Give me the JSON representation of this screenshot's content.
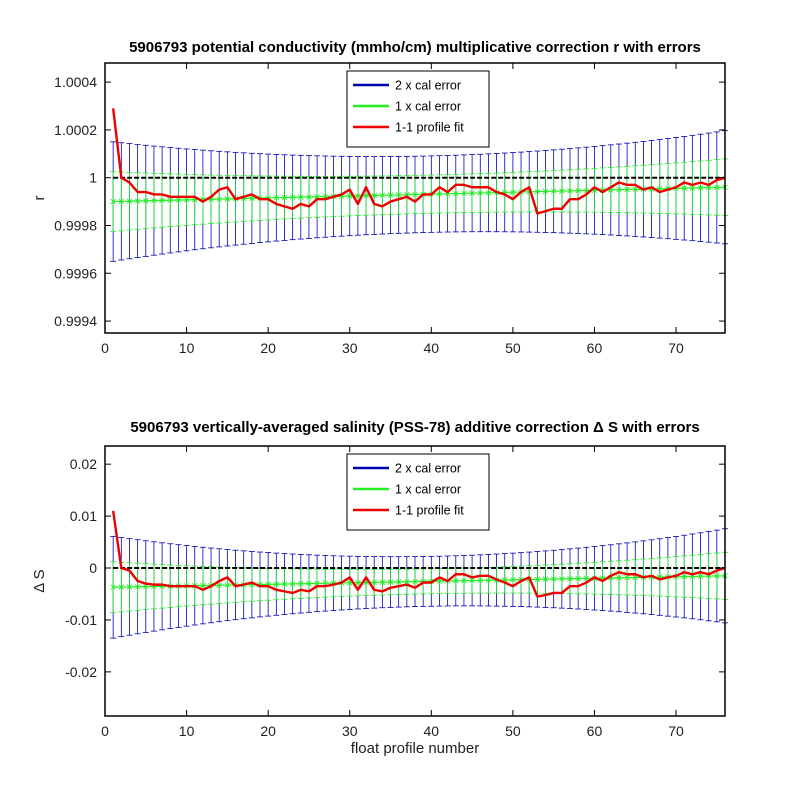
{
  "colors": {
    "error_2x": "#0000b3",
    "error_1x": "#22ee22",
    "fit": "#ee0000",
    "reference": "#000000"
  },
  "chart_data": [
    {
      "type": "line",
      "title": "5906793 potential conductivity (mmho/cm) multiplicative correction r with errors",
      "xlabel": "",
      "ylabel": "r",
      "xlim": [
        0,
        76
      ],
      "ylim": [
        0.99935,
        1.00048
      ],
      "xticks": [
        0,
        10,
        20,
        30,
        40,
        50,
        60,
        70
      ],
      "yticks": [
        0.9994,
        0.9996,
        0.9998,
        1,
        1.0002,
        1.0004
      ],
      "yticklabels": [
        "0.9994",
        "0.9996",
        "0.9998",
        "1",
        "1.0002",
        "1.0004"
      ],
      "reference_line": 1,
      "legend": {
        "position": "top-center",
        "entries": [
          "2 x cal error",
          "1 x cal error",
          "1-1 profile fit"
        ]
      },
      "calibration": {
        "x_range": [
          1,
          76
        ],
        "center_start": 0.9999,
        "center_end": 0.99996,
        "error_1x_min": 8e-05,
        "error_1x_max": 0.000125,
        "error_2x_min": 0.00016,
        "error_2x_max": 0.00025,
        "min_at_x": 40
      },
      "series": [
        {
          "name": "1-1 profile fit",
          "x": [
            1,
            2,
            3,
            4,
            5,
            6,
            7,
            8,
            9,
            10,
            11,
            12,
            13,
            14,
            15,
            16,
            17,
            18,
            19,
            20,
            21,
            22,
            23,
            24,
            25,
            26,
            27,
            28,
            29,
            30,
            31,
            32,
            33,
            34,
            35,
            36,
            37,
            38,
            39,
            40,
            41,
            42,
            43,
            44,
            45,
            46,
            47,
            48,
            49,
            50,
            51,
            52,
            53,
            54,
            55,
            56,
            57,
            58,
            59,
            60,
            61,
            62,
            63,
            64,
            65,
            66,
            67,
            68,
            69,
            70,
            71,
            72,
            73,
            74,
            75,
            76
          ],
          "y": [
            1.00029,
            1.0,
            0.99998,
            0.99994,
            0.99994,
            0.99993,
            0.99993,
            0.99992,
            0.99992,
            0.99992,
            0.99992,
            0.9999,
            0.99992,
            0.99995,
            0.99996,
            0.99991,
            0.99992,
            0.99993,
            0.99991,
            0.99991,
            0.99989,
            0.99988,
            0.99987,
            0.99989,
            0.99988,
            0.99991,
            0.99991,
            0.99992,
            0.99993,
            0.99995,
            0.99989,
            0.99996,
            0.99989,
            0.99988,
            0.9999,
            0.99991,
            0.99992,
            0.9999,
            0.99993,
            0.99993,
            0.99996,
            0.99994,
            0.99997,
            0.99997,
            0.99996,
            0.99996,
            0.99996,
            0.99994,
            0.99993,
            0.99991,
            0.99994,
            0.99996,
            0.99985,
            0.99986,
            0.99987,
            0.99987,
            0.99991,
            0.99991,
            0.99993,
            0.99996,
            0.99994,
            0.99996,
            0.99998,
            0.99997,
            0.99997,
            0.99995,
            0.99996,
            0.99994,
            0.99995,
            0.99996,
            0.99998,
            0.99997,
            0.99998,
            0.99997,
            0.99999,
            1.0
          ]
        }
      ]
    },
    {
      "type": "line",
      "title": "5906793 vertically-averaged salinity (PSS-78) additive correction Δ S with errors",
      "xlabel": "float profile number",
      "ylabel": "Δ S",
      "xlim": [
        0,
        76
      ],
      "ylim": [
        -0.0285,
        0.0235
      ],
      "xticks": [
        0,
        10,
        20,
        30,
        40,
        50,
        60,
        70
      ],
      "yticks": [
        -0.02,
        -0.01,
        0,
        0.01,
        0.02
      ],
      "yticklabels": [
        "-0.02",
        "-0.01",
        "0",
        "0.01",
        "0.02"
      ],
      "reference_line": 0,
      "legend": {
        "position": "top-center",
        "entries": [
          "2 x cal error",
          "1 x cal error",
          "1-1 profile fit"
        ]
      },
      "calibration": {
        "x_range": [
          1,
          76
        ],
        "center_start": -0.0037,
        "center_end": -0.0015,
        "error_1x_min": 0.0024,
        "error_1x_max": 0.0049,
        "error_2x_min": 0.0048,
        "error_2x_max": 0.0098,
        "min_at_x": 40
      },
      "series": [
        {
          "name": "1-1 profile fit",
          "x": [
            1,
            2,
            3,
            4,
            5,
            6,
            7,
            8,
            9,
            10,
            11,
            12,
            13,
            14,
            15,
            16,
            17,
            18,
            19,
            20,
            21,
            22,
            23,
            24,
            25,
            26,
            27,
            28,
            29,
            30,
            31,
            32,
            33,
            34,
            35,
            36,
            37,
            38,
            39,
            40,
            41,
            42,
            43,
            44,
            45,
            46,
            47,
            48,
            49,
            50,
            51,
            52,
            53,
            54,
            55,
            56,
            57,
            58,
            59,
            60,
            61,
            62,
            63,
            64,
            65,
            66,
            67,
            68,
            69,
            70,
            71,
            72,
            73,
            74,
            75,
            76
          ],
          "y": [
            0.011,
            0.0,
            -0.0005,
            -0.0025,
            -0.003,
            -0.0032,
            -0.0032,
            -0.0035,
            -0.0035,
            -0.0035,
            -0.0035,
            -0.0042,
            -0.0035,
            -0.0025,
            -0.0018,
            -0.0035,
            -0.0032,
            -0.0028,
            -0.0035,
            -0.0035,
            -0.0042,
            -0.0045,
            -0.0048,
            -0.0042,
            -0.0045,
            -0.0035,
            -0.0035,
            -0.0032,
            -0.0028,
            -0.0018,
            -0.0042,
            -0.0018,
            -0.0042,
            -0.0045,
            -0.0038,
            -0.0035,
            -0.0032,
            -0.0038,
            -0.0028,
            -0.0028,
            -0.0018,
            -0.0025,
            -0.0012,
            -0.0012,
            -0.0018,
            -0.0015,
            -0.0015,
            -0.0022,
            -0.0028,
            -0.0035,
            -0.0025,
            -0.0018,
            -0.0055,
            -0.0052,
            -0.0048,
            -0.0048,
            -0.0035,
            -0.0035,
            -0.0028,
            -0.0018,
            -0.0025,
            -0.0015,
            -0.0008,
            -0.0012,
            -0.0012,
            -0.0018,
            -0.0015,
            -0.0022,
            -0.0018,
            -0.0015,
            -0.0008,
            -0.0012,
            -0.0008,
            -0.0012,
            -0.0005,
            0.0
          ]
        }
      ]
    }
  ]
}
